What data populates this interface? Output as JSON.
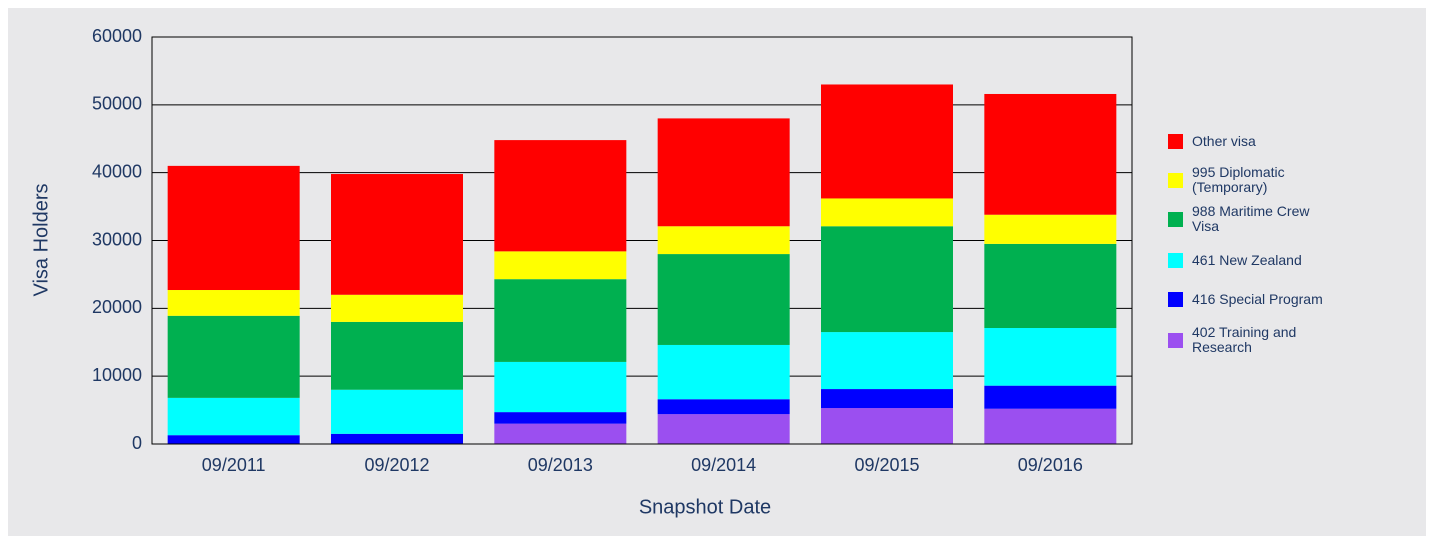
{
  "chart_data": {
    "type": "stacked_bar",
    "x_label": "Snapshot Date",
    "y_label": "Visa Holders",
    "categories": [
      "09/2011",
      "09/2012",
      "09/2013",
      "09/2014",
      "09/2015",
      "09/2016"
    ],
    "series": [
      {
        "name": "402 Training and Research",
        "color": "#9b4ff0",
        "values": [
          0,
          0,
          3000,
          4400,
          5300,
          5200
        ]
      },
      {
        "name": "416 Special Program",
        "color": "#0000ff",
        "values": [
          1300,
          1500,
          1700,
          2200,
          2800,
          3400
        ]
      },
      {
        "name": "461 New Zealand",
        "color": "#00ffff",
        "values": [
          5500,
          6500,
          7400,
          8000,
          8400,
          8500
        ]
      },
      {
        "name": "988 Maritime Crew Visa",
        "color": "#00b050",
        "values": [
          12100,
          10000,
          12200,
          13400,
          15600,
          12400
        ]
      },
      {
        "name": "995 Diplomatic (Temporary)",
        "color": "#ffff00",
        "values": [
          3800,
          4000,
          4100,
          4100,
          4100,
          4300
        ]
      },
      {
        "name": "Other visa",
        "color": "#ff0000",
        "values": [
          18300,
          17800,
          16400,
          15900,
          16800,
          17800
        ]
      }
    ],
    "ylim": [
      0,
      60000
    ],
    "yticks": [
      0,
      10000,
      20000,
      30000,
      40000,
      50000,
      60000
    ],
    "grid": true,
    "legend": "right"
  }
}
